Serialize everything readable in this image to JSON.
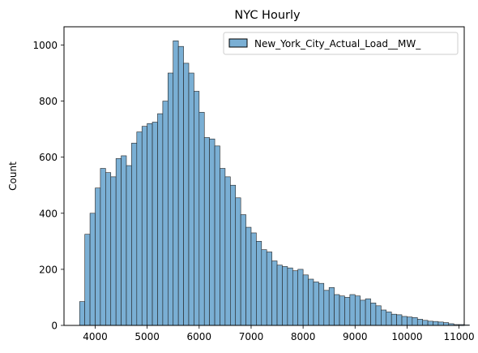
{
  "chart_data": {
    "type": "bar",
    "title": "NYC Hourly",
    "xlabel": "",
    "ylabel": "Count",
    "xlim": [
      3400,
      11100
    ],
    "ylim": [
      0,
      1065
    ],
    "xticks": [
      4000,
      5000,
      6000,
      7000,
      8000,
      9000,
      10000,
      11000
    ],
    "yticks": [
      0,
      200,
      400,
      600,
      800,
      1000
    ],
    "grid": false,
    "legend_position": "top-right",
    "series": [
      {
        "name": "New_York_City_Actual_Load__MW_",
        "color": "#7aafd4",
        "edge_color": "#222222",
        "bin_start": 3700,
        "bin_width": 100,
        "counts": [
          85,
          325,
          400,
          490,
          560,
          545,
          530,
          595,
          605,
          570,
          650,
          690,
          710,
          720,
          725,
          755,
          800,
          900,
          1015,
          995,
          935,
          900,
          835,
          760,
          670,
          665,
          640,
          560,
          530,
          500,
          455,
          395,
          350,
          330,
          300,
          270,
          262,
          230,
          215,
          210,
          205,
          195,
          200,
          180,
          165,
          155,
          150,
          125,
          135,
          110,
          105,
          100,
          110,
          105,
          90,
          95,
          80,
          70,
          55,
          48,
          40,
          38,
          32,
          30,
          28,
          22,
          18,
          15,
          14,
          12,
          10,
          6,
          3,
          3,
          2
        ]
      }
    ]
  }
}
